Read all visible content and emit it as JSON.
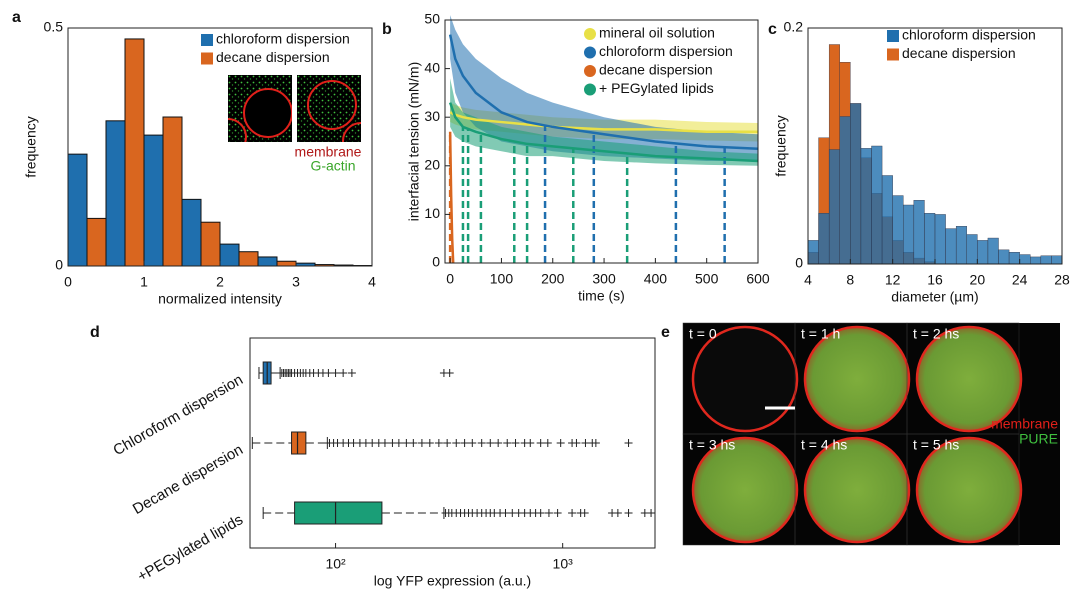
{
  "chart_data": [
    {
      "type": "bar",
      "panel": "a",
      "xlabel": "normalized intensity",
      "ylabel": "frequency",
      "x": [
        0.25,
        0.75,
        1.25,
        1.75,
        2.25,
        2.75,
        3.25,
        3.75
      ],
      "series": [
        {
          "name": "chloroform dispersion",
          "color": "#1f6fae",
          "values": [
            0.235,
            0.305,
            0.275,
            0.14,
            0.046,
            0.019,
            0.006,
            0.002
          ]
        },
        {
          "name": "decane dispersion",
          "color": "#d9661f",
          "values": [
            0.1,
            0.477,
            0.313,
            0.092,
            0.03,
            0.01,
            0.003,
            0.001
          ]
        }
      ],
      "xlim": [
        0,
        4
      ],
      "xticks": [
        0,
        1,
        2,
        3,
        4
      ],
      "ylim": [
        0,
        0.5
      ],
      "yticks": [
        0,
        0.5
      ],
      "legend": "upper right",
      "inset_labels": [
        "membrane",
        "G-actin"
      ]
    },
    {
      "type": "line",
      "panel": "b",
      "xlabel": "time (s)",
      "ylabel": "interfacial tension (mN/m)",
      "series": [
        {
          "name": "mineral oil solution",
          "color": "#e8e046",
          "x": [
            0,
            10,
            25,
            50,
            100,
            150,
            200,
            300,
            400,
            500,
            600
          ],
          "values": [
            31,
            30.5,
            30,
            29.5,
            29,
            28.5,
            28,
            27.5,
            27.5,
            27,
            27
          ],
          "upper": [
            33,
            32.5,
            32,
            31.5,
            31,
            30.5,
            30,
            29.5,
            29.5,
            29,
            28.8
          ],
          "lower": [
            29,
            28.5,
            28,
            27.5,
            27,
            26.5,
            26,
            25.5,
            25.5,
            25.2,
            25
          ],
          "events": []
        },
        {
          "name": "chloroform dispersion",
          "color": "#1f6fae",
          "x": [
            0,
            10,
            25,
            50,
            100,
            150,
            200,
            300,
            400,
            500,
            600
          ],
          "values": [
            47,
            42,
            38.5,
            35,
            31,
            29,
            28,
            26.5,
            25,
            24,
            23.5
          ],
          "upper": [
            51,
            48,
            45,
            42,
            38,
            35,
            33,
            30,
            28,
            27,
            26.5
          ],
          "lower": [
            42,
            35,
            31,
            28,
            25,
            24,
            23,
            22,
            21.5,
            21,
            21
          ],
          "events": [
            185,
            280,
            440,
            535
          ]
        },
        {
          "name": "decane dispersion",
          "color": "#d9661f",
          "x": [
            0,
            2,
            4,
            6
          ],
          "values": [
            27,
            14,
            5,
            0
          ],
          "events": [
            0
          ]
        },
        {
          "name": "+ PEGylated lipids",
          "color": "#1a9e77",
          "x": [
            0,
            10,
            25,
            50,
            100,
            150,
            200,
            300,
            400,
            500,
            600
          ],
          "values": [
            33,
            30,
            28,
            27,
            25.5,
            24.5,
            24,
            23,
            22,
            21.5,
            21
          ],
          "upper": [
            38,
            33,
            31,
            30,
            28,
            27,
            26,
            25,
            24,
            23,
            22.5
          ],
          "lower": [
            28,
            26,
            25,
            24,
            23,
            22,
            22,
            21,
            20.5,
            20.2,
            20
          ],
          "events": [
            25,
            35,
            60,
            125,
            150,
            240,
            345
          ]
        }
      ],
      "xlim": [
        -10,
        600
      ],
      "xticks": [
        0,
        100,
        200,
        300,
        400,
        500,
        600
      ],
      "ylim": [
        0,
        50
      ],
      "yticks": [
        0,
        10,
        20,
        30,
        40,
        50
      ],
      "legend": "upper right"
    },
    {
      "type": "histogram",
      "panel": "c",
      "xlabel": "diameter (µm)",
      "ylabel": "frequency",
      "bins": [
        4,
        5,
        6,
        7,
        8,
        9,
        10,
        11,
        12,
        13,
        14,
        15,
        16,
        17,
        18,
        19,
        20,
        21,
        22,
        23,
        24,
        25,
        26,
        27,
        28
      ],
      "series": [
        {
          "name": "chloroform dispersion",
          "color": "#1f6fae",
          "values": [
            0.02,
            0.043,
            0.097,
            0.125,
            0.136,
            0.098,
            0.1,
            0.075,
            0.058,
            0.05,
            0.054,
            0.043,
            0.042,
            0.03,
            0.032,
            0.025,
            0.02,
            0.022,
            0.012,
            0.01,
            0.008,
            0.006,
            0.007,
            0.007
          ]
        },
        {
          "name": "decane dispersion",
          "color": "#d9661f",
          "values": [
            0.01,
            0.107,
            0.186,
            0.171,
            0.136,
            0.09,
            0.06,
            0.04,
            0.02,
            0.01,
            0.005,
            0.002,
            0,
            0,
            0,
            0,
            0,
            0,
            0,
            0,
            0,
            0,
            0,
            0
          ]
        }
      ],
      "xlim": [
        4,
        28
      ],
      "xticks": [
        4,
        8,
        12,
        16,
        20,
        24,
        28
      ],
      "ylim": [
        0,
        0.2
      ],
      "yticks": [
        0,
        0.2
      ],
      "legend": "upper right"
    },
    {
      "type": "box",
      "panel": "d",
      "xlabel": "log YFP expression (a.u.)",
      "xscale": "log",
      "categories": [
        "Chloroform dispersion",
        "Decane dispersion",
        "+PEGylated lipids"
      ],
      "boxes": [
        {
          "color": "#1f6fae",
          "whisker_low": 46,
          "q1": 48,
          "median": 50,
          "q3": 52,
          "whisker_high": 57,
          "outliers": [
            58,
            59,
            60,
            61,
            62,
            63,
            64,
            66,
            68,
            70,
            72,
            74,
            77,
            80,
            84,
            88,
            93,
            100,
            108,
            118,
            300,
            318
          ]
        },
        {
          "color": "#d9661f",
          "whisker_low": 43,
          "q1": 64,
          "median": 68,
          "q3": 74,
          "whisker_high": 92,
          "outliers": [
            94,
            98,
            102,
            108,
            114,
            120,
            128,
            136,
            145,
            155,
            165,
            178,
            190,
            205,
            220,
            240,
            260,
            285,
            310,
            340,
            370,
            400,
            440,
            480,
            520,
            570,
            620,
            680,
            720,
            800,
            860,
            980,
            1100,
            1150,
            1260,
            1350,
            1400,
            1950
          ]
        },
        {
          "color": "#1a9e77",
          "whisker_low": 48,
          "q1": 66,
          "median": 100,
          "q3": 160,
          "whisker_high": 300,
          "outliers": [
            305,
            315,
            325,
            340,
            355,
            370,
            385,
            400,
            420,
            440,
            460,
            480,
            500,
            530,
            560,
            600,
            640,
            680,
            720,
            760,
            800,
            870,
            950,
            1100,
            1200,
            1250,
            1650,
            1750,
            1950,
            2300,
            2450
          ]
        }
      ],
      "xlim": [
        42,
        2550
      ],
      "xticks": [
        {
          "value": 100,
          "label": "10²"
        },
        {
          "value": 1000,
          "label": "10³"
        }
      ]
    }
  ],
  "micrographs": {
    "panel": "e",
    "frames": [
      "t = 0",
      "t = 1 h",
      "t = 2 hs",
      "t = 3 hs",
      "t = 4 hs",
      "t = 5 hs"
    ],
    "channels": [
      "membrane",
      "PURE"
    ]
  }
}
